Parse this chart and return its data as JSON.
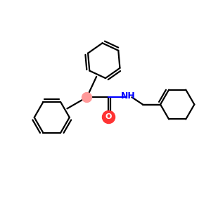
{
  "bg_color": "#ffffff",
  "bond_color": "#000000",
  "N_color": "#0000ff",
  "O_color": "#ff3333",
  "CH_color": "#ff9999",
  "lw": 1.6,
  "fig_w": 3.0,
  "fig_h": 3.0,
  "dpi": 100
}
